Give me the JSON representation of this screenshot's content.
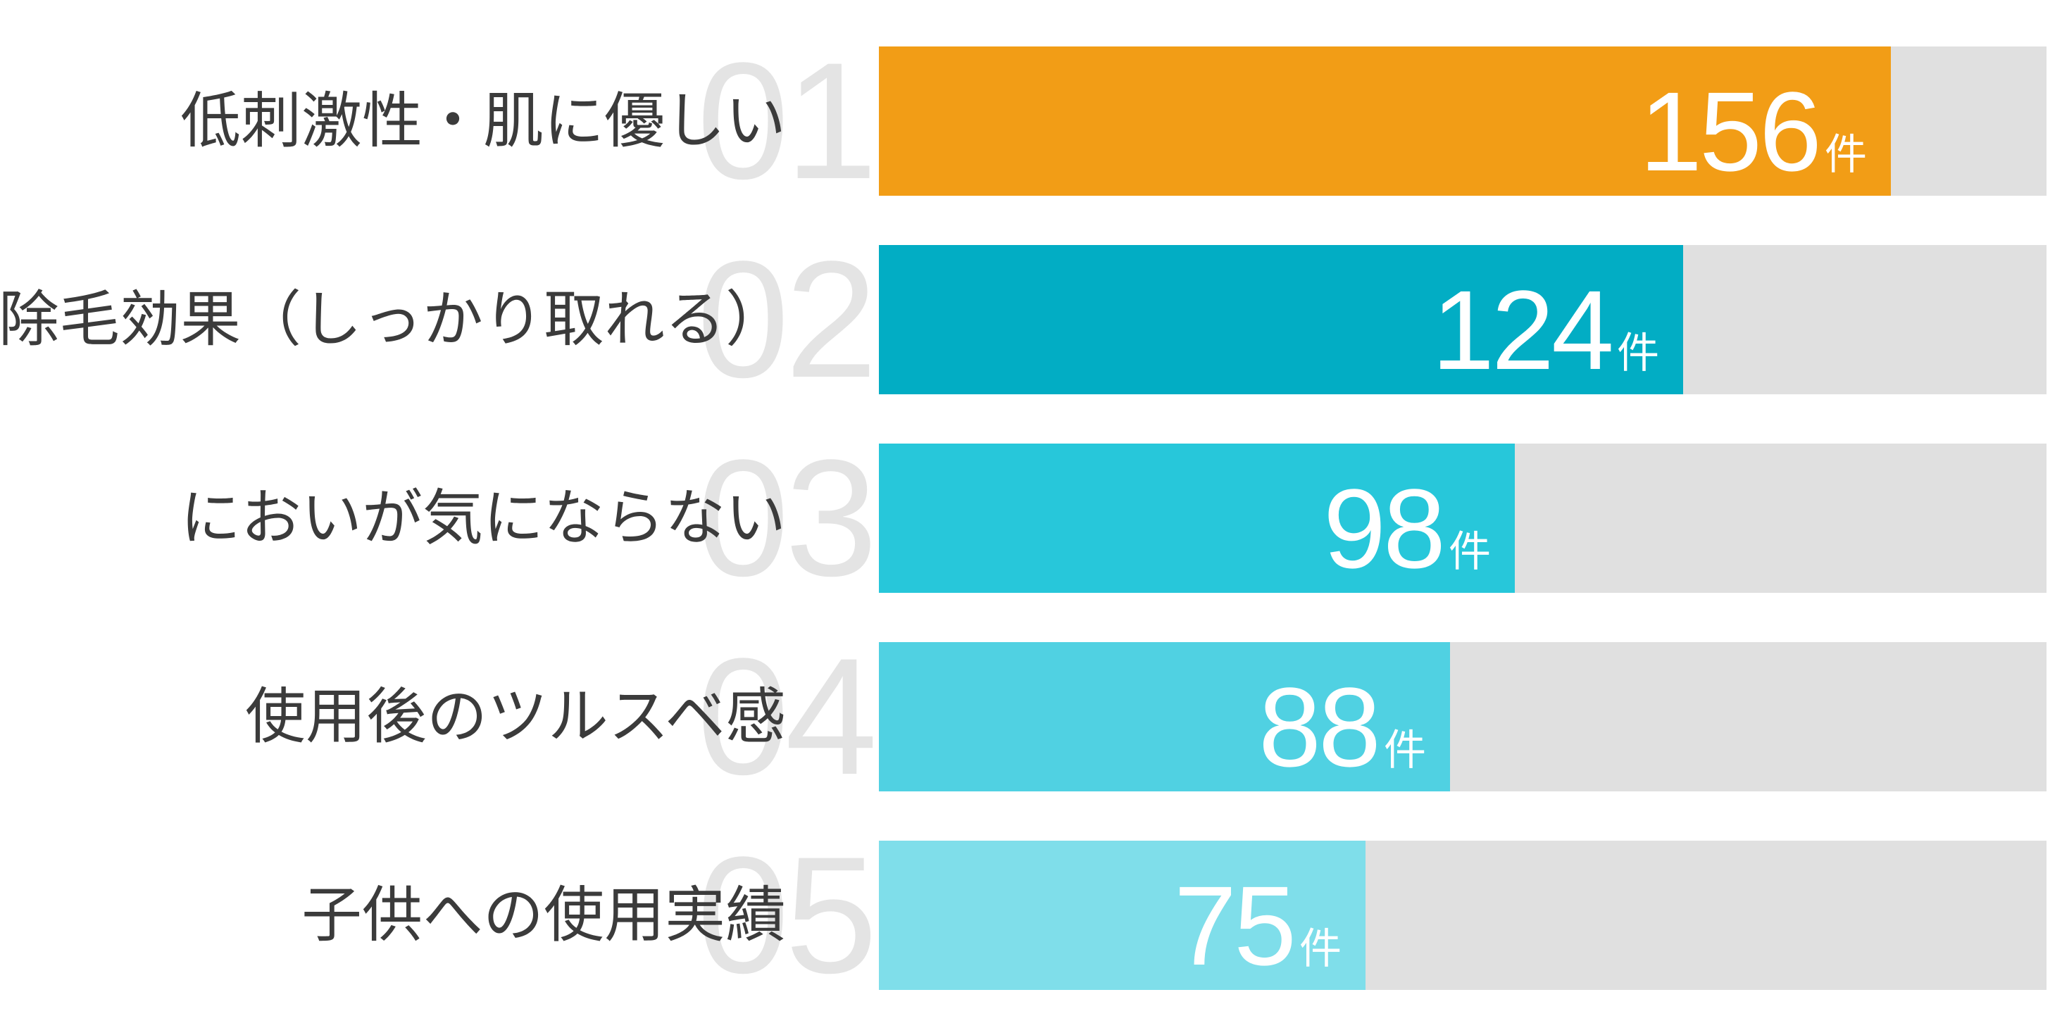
{
  "chart_data": {
    "type": "bar",
    "orientation": "horizontal",
    "categories": [
      "低刺激性・肌に優しい",
      "除毛効果（しっかり取れる）",
      "においが気にならない",
      "使用後のツルスベ感",
      "子供への使用実績"
    ],
    "ranks": [
      "01",
      "02",
      "03",
      "04",
      "05"
    ],
    "values": [
      156,
      124,
      98,
      88,
      75
    ],
    "value_labels": [
      "156",
      "124",
      "98",
      "88",
      "75"
    ],
    "unit": "件",
    "xlim": [
      0,
      180
    ],
    "colors": [
      "#f29d16",
      "#02adc4",
      "#27c7da",
      "#50d1e2",
      "#7fdeea"
    ],
    "track_color": "#e0e0e0",
    "grid": false,
    "legend": "none"
  }
}
